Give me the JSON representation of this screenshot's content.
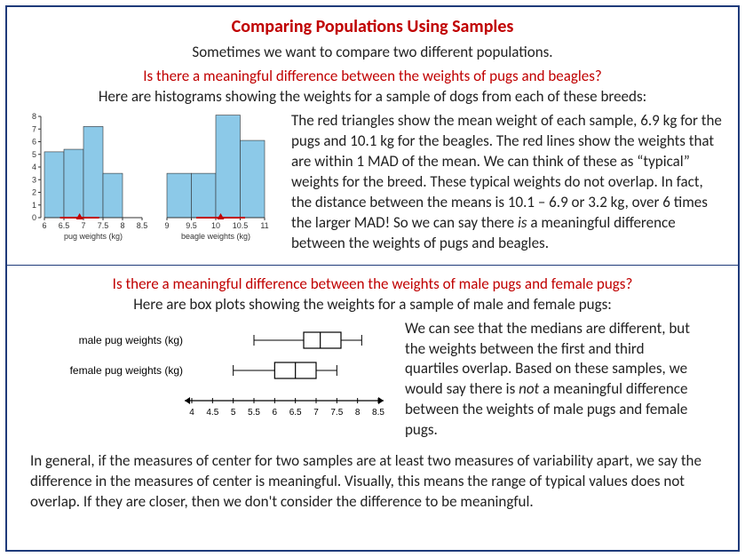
{
  "title": "Comparing Populations Using Samples",
  "subtitle": "Sometimes we want to compare two different populations.",
  "q1": "Is there a meaningful difference between the weights of pugs and beagles?",
  "caption1": "Here are histograms showing the weights for a sample of dogs from each of these breeds:",
  "para1_a": "The red triangles show the mean weight of each sample, 6.9 kg for the pugs and 10.1 kg for the beagles. The red lines show the weights that are within 1 MAD of the mean. We can think of these as “typical” weights for the breed. These typical weights do not overlap. In fact, the distance between the means is 10.1 – 6.9 or 3.2 kg, over 6 times the larger MAD! So we can say there ",
  "para1_is": "is",
  "para1_b": " a meaningful difference between the weights of pugs and beagles.",
  "q2": "Is there a meaningful difference between the weights of male pugs and female pugs?",
  "caption2": "Here are box plots showing the weights for a sample of male and female pugs:",
  "para2_a": "We can see that the medians are different, but the weights between the first and third quartiles overlap. Based on these samples, we would say there is ",
  "para2_not": "not",
  "para2_b": " a meaningful difference between the weights of male pugs and female pugs.",
  "conclusion": "In general, if the measures of center for two samples are at least two measures of variability apart, we say the difference in the measures of center is meaningful. Visually, this means the range of typical values does not overlap. If they are closer, then we don't consider the difference to be meaningful.",
  "histogram": {
    "type": "histogram",
    "background_color": "#ffffff",
    "bar_color": "#8cc9e8",
    "bar_stroke": "#333333",
    "axis_color": "#333333",
    "tick_fontsize": 9,
    "label_fontsize": 9,
    "mean_marker_color": "#c00000",
    "y_ticks": [
      0,
      1,
      2,
      3,
      4,
      5,
      6,
      7,
      8
    ],
    "pug": {
      "x_start": 6,
      "x_end": 8.5,
      "x_step": 0.5,
      "bars": [
        5.2,
        5.4,
        7.2,
        3.5,
        0
      ],
      "mean": 6.9,
      "mad": 0.5,
      "axis_label": "pug weights (kg)"
    },
    "beagle": {
      "x_start": 9,
      "x_end": 11,
      "x_step": 0.5,
      "bars": [
        3.5,
        3.5,
        8.1,
        6.1
      ],
      "mean": 10.1,
      "mad": 0.5,
      "axis_label": "beagle weights (kg)"
    }
  },
  "boxplot": {
    "type": "boxplot",
    "axis_color": "#000000",
    "tick_fontsize": 10,
    "label_fontsize": 12,
    "x_min": 4,
    "x_max": 8.5,
    "x_step": 0.5,
    "male": {
      "label": "male pug weights (kg)",
      "whisker_lo": 5.5,
      "q1": 6.7,
      "median": 7.1,
      "q3": 7.6,
      "whisker_hi": 8.1
    },
    "female": {
      "label": "female pug weights (kg)",
      "whisker_lo": 5.0,
      "q1": 6.0,
      "median": 6.5,
      "q3": 7.0,
      "whisker_hi": 7.5
    }
  }
}
